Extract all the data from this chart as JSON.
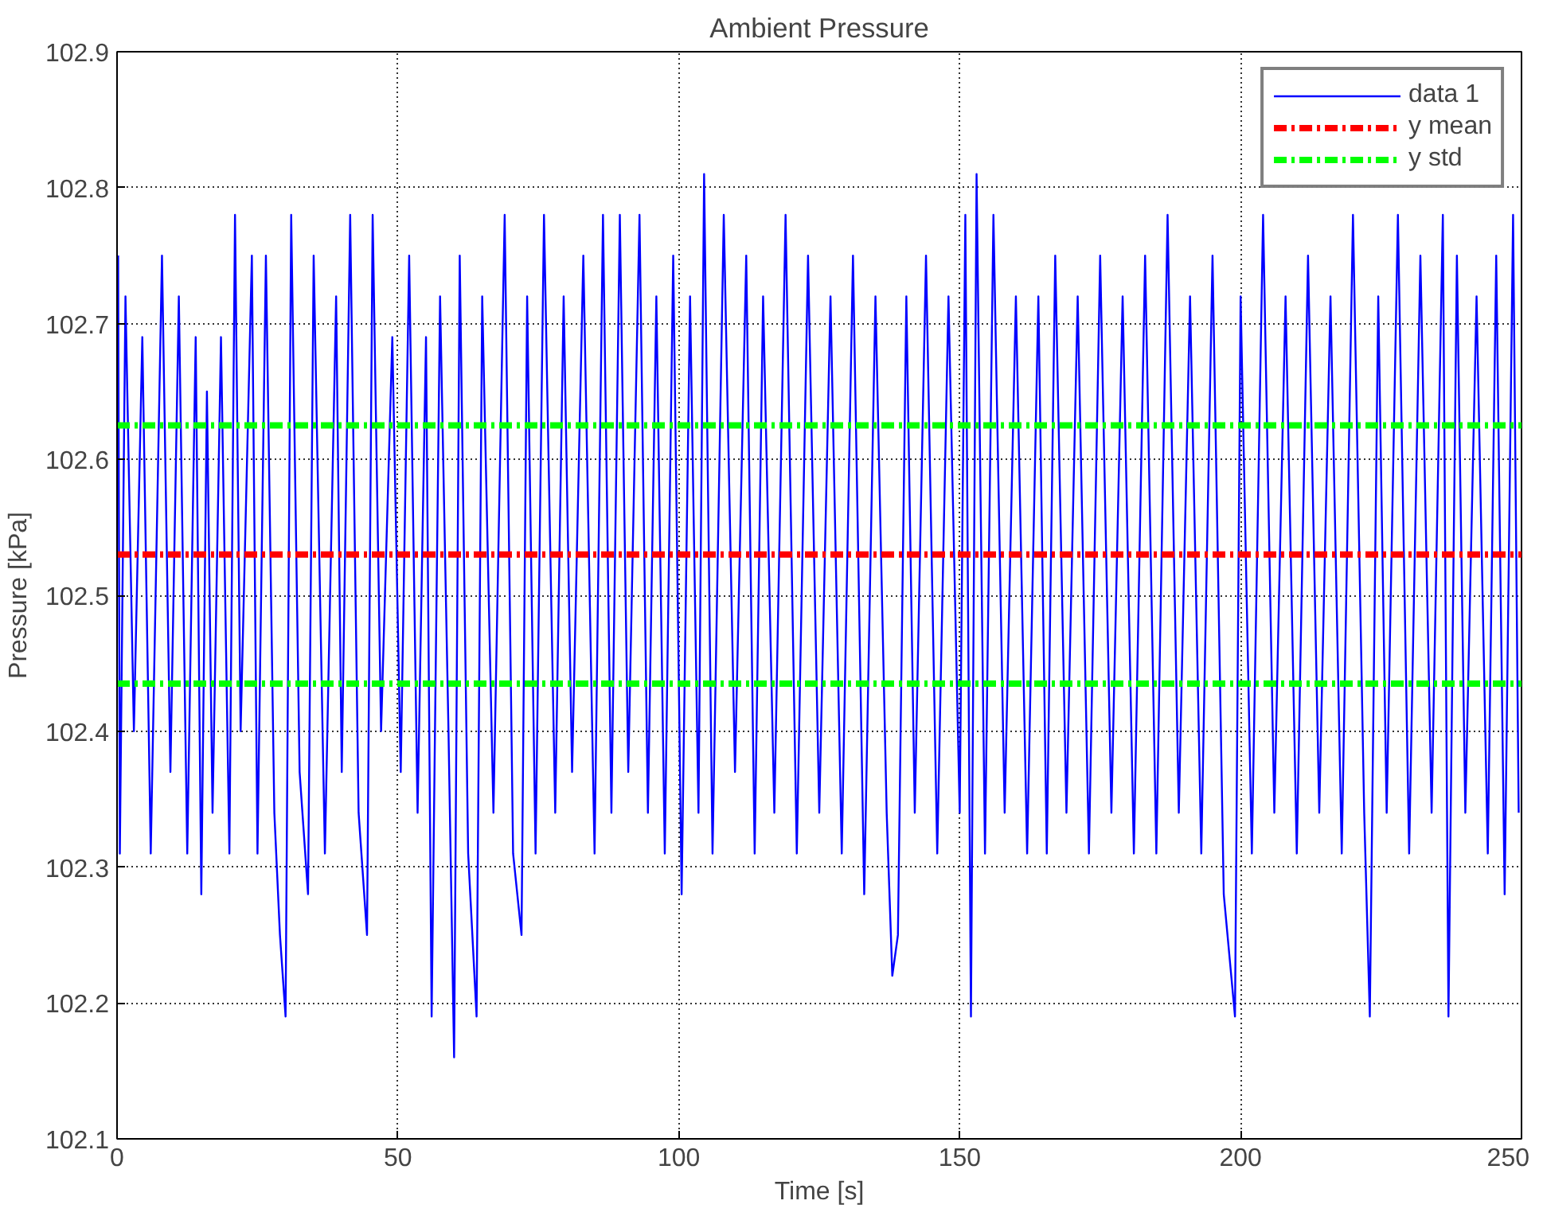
{
  "chart_data": {
    "type": "line",
    "title": "Ambient Pressure",
    "xlabel": "Time [s]",
    "ylabel": "Pressure [kPa]",
    "xlim": [
      0,
      250
    ],
    "xticks": [
      0,
      50,
      100,
      150,
      200,
      250
    ],
    "ylim": [
      102.1,
      102.9
    ],
    "yticks": [
      102.1,
      102.2,
      102.3,
      102.4,
      102.5,
      102.6,
      102.7,
      102.8,
      102.9
    ],
    "grid": true,
    "legend": "top right",
    "series": [
      {
        "name": "data 1",
        "color": "#0000ff",
        "line_style": "solid",
        "x": [
          0.2,
          0.5,
          1.5,
          3,
          4.5,
          6,
          8,
          9.5,
          11,
          12.5,
          14,
          15,
          16,
          17,
          18.5,
          20,
          21,
          22,
          24,
          25,
          26.5,
          28,
          29,
          30,
          31,
          32.5,
          34,
          35,
          37,
          39,
          40,
          41.5,
          43,
          44.5,
          45.5,
          47,
          49,
          50.5,
          52,
          53.5,
          55,
          56,
          57.5,
          59,
          60,
          61,
          62.5,
          64,
          65,
          67,
          69,
          70.5,
          72,
          73,
          74.5,
          76,
          78,
          79.5,
          81,
          83,
          85,
          86.5,
          88,
          89.5,
          91,
          93,
          94.5,
          96,
          97.5,
          99,
          100.5,
          102,
          103.5,
          104.5,
          106,
          108,
          110,
          112,
          113.5,
          115,
          117,
          119,
          121,
          123,
          125,
          127,
          129,
          131,
          133,
          135,
          137,
          138,
          139,
          140.5,
          142,
          144,
          146,
          148,
          150,
          151,
          152,
          153,
          154.5,
          156,
          158,
          160,
          162,
          164,
          165.5,
          167,
          169,
          171,
          173,
          175,
          177,
          179,
          181,
          183,
          185,
          187,
          189,
          191,
          193,
          195,
          197,
          199,
          200,
          202,
          204,
          206,
          208,
          210,
          212,
          214,
          216,
          218,
          220,
          222,
          223,
          224.5,
          226,
          228,
          230,
          232,
          234,
          236,
          237,
          238.5,
          240,
          242,
          244,
          245.5,
          247,
          248.5,
          249.5
        ],
        "values": [
          102.75,
          102.31,
          102.72,
          102.4,
          102.69,
          102.31,
          102.75,
          102.37,
          102.72,
          102.31,
          102.69,
          102.28,
          102.65,
          102.34,
          102.69,
          102.31,
          102.78,
          102.4,
          102.75,
          102.31,
          102.75,
          102.34,
          102.25,
          102.19,
          102.78,
          102.37,
          102.28,
          102.75,
          102.31,
          102.72,
          102.37,
          102.78,
          102.34,
          102.25,
          102.78,
          102.4,
          102.69,
          102.37,
          102.75,
          102.34,
          102.69,
          102.19,
          102.72,
          102.4,
          102.16,
          102.75,
          102.31,
          102.19,
          102.72,
          102.34,
          102.78,
          102.31,
          102.25,
          102.72,
          102.31,
          102.78,
          102.34,
          102.72,
          102.37,
          102.75,
          102.31,
          102.78,
          102.34,
          102.78,
          102.37,
          102.78,
          102.34,
          102.72,
          102.31,
          102.75,
          102.28,
          102.72,
          102.34,
          102.81,
          102.31,
          102.78,
          102.37,
          102.75,
          102.31,
          102.72,
          102.34,
          102.78,
          102.31,
          102.75,
          102.34,
          102.72,
          102.31,
          102.75,
          102.28,
          102.72,
          102.34,
          102.22,
          102.25,
          102.72,
          102.34,
          102.75,
          102.31,
          102.72,
          102.34,
          102.78,
          102.19,
          102.81,
          102.31,
          102.78,
          102.34,
          102.72,
          102.31,
          102.72,
          102.31,
          102.75,
          102.34,
          102.72,
          102.31,
          102.75,
          102.34,
          102.72,
          102.31,
          102.75,
          102.31,
          102.78,
          102.34,
          102.72,
          102.31,
          102.75,
          102.28,
          102.19,
          102.72,
          102.31,
          102.78,
          102.34,
          102.72,
          102.31,
          102.75,
          102.34,
          102.72,
          102.31,
          102.78,
          102.34,
          102.19,
          102.72,
          102.34,
          102.78,
          102.31,
          102.75,
          102.34,
          102.78,
          102.19,
          102.75,
          102.34,
          102.72,
          102.31,
          102.75,
          102.28,
          102.78,
          102.34
        ]
      }
    ],
    "ref_lines": [
      {
        "axis": "y",
        "value": 102.53,
        "label": "y mean",
        "color": "#ff0000",
        "line_style": "dashed"
      },
      {
        "axis": "y",
        "value": 102.625,
        "label": "y std",
        "color": "#00ff00",
        "line_style": "dashed"
      },
      {
        "axis": "y",
        "value": 102.435,
        "color": "#00ff00",
        "line_style": "dashed"
      }
    ]
  }
}
